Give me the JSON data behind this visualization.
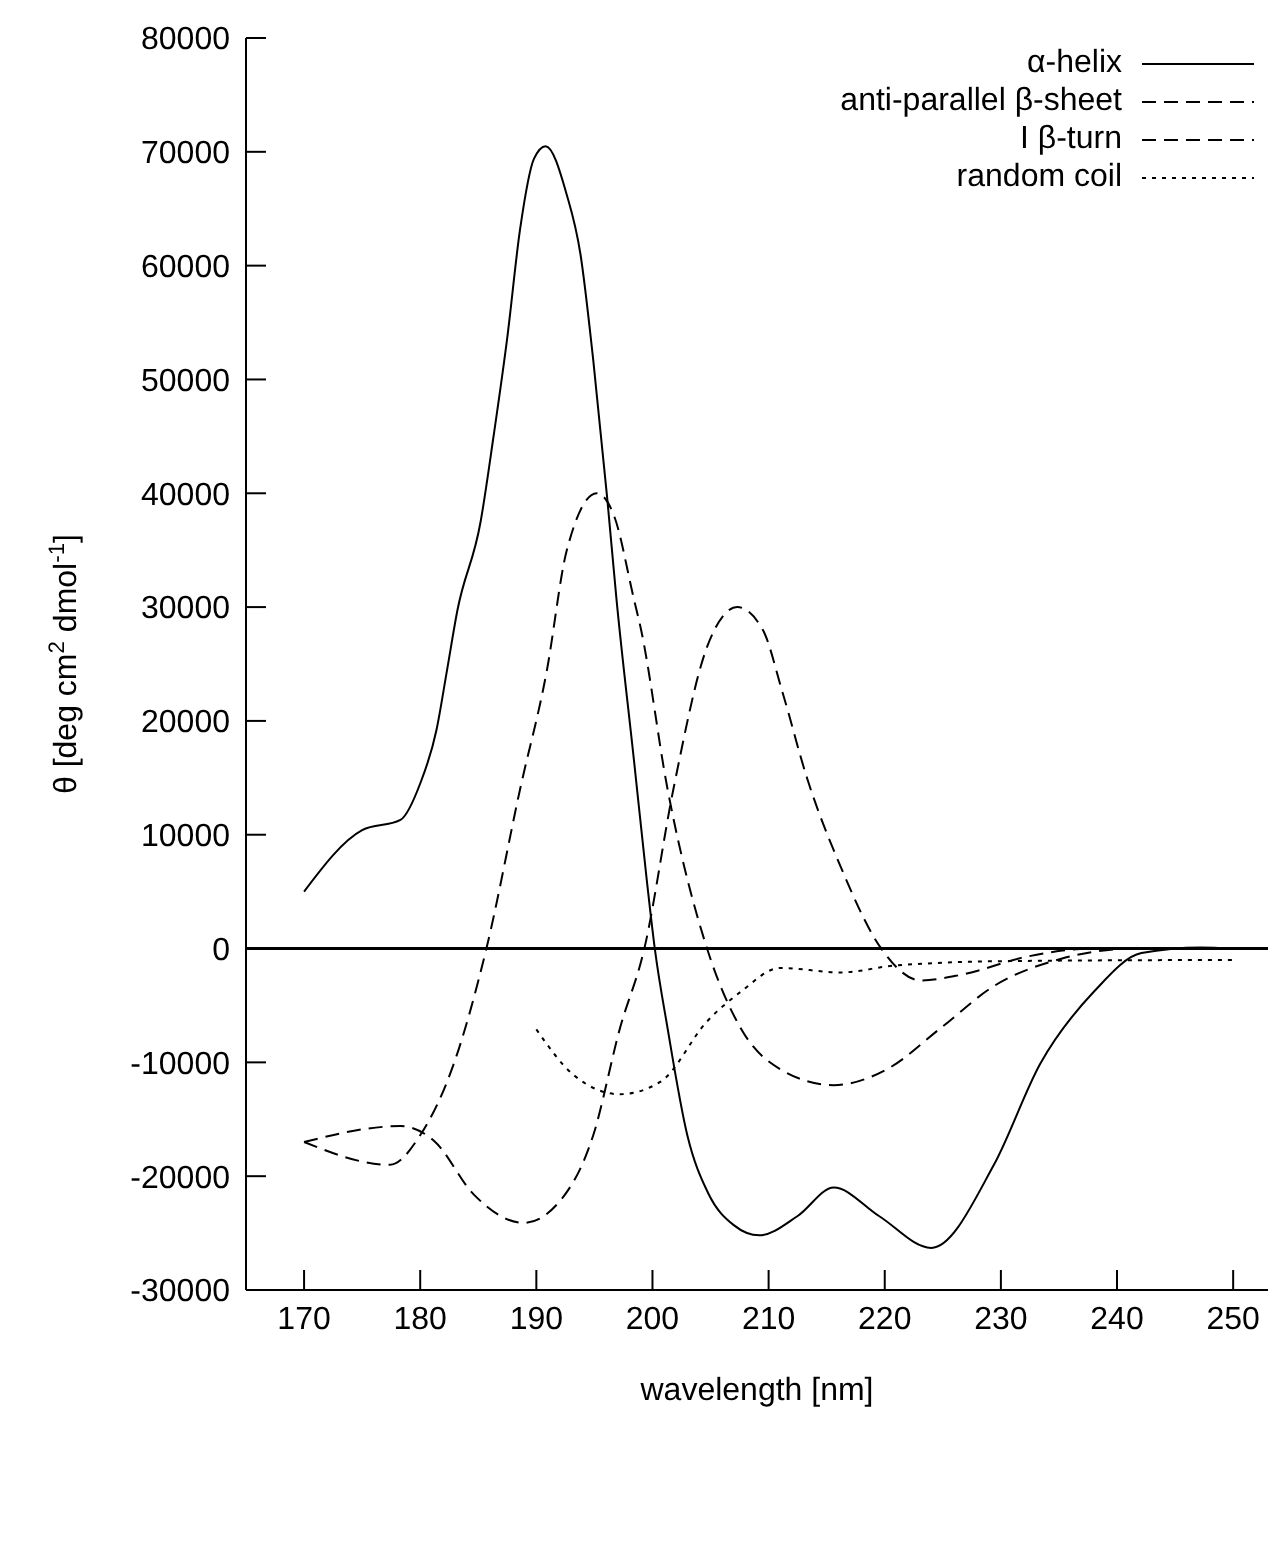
{
  "chart_data": {
    "type": "line",
    "xlabel": "wavelength [nm]",
    "ylabel": "θ [deg cm$^{2}$ dmol$^{-1}$]",
    "xlim": [
      165,
      253
    ],
    "xticks": [
      170,
      180,
      190,
      200,
      210,
      220,
      230,
      240,
      250
    ],
    "ylim": [
      -30000,
      80000
    ],
    "yticks": [
      -30000,
      -20000,
      -10000,
      0,
      10000,
      20000,
      30000,
      40000,
      50000,
      60000,
      70000,
      80000
    ],
    "legend": "top right",
    "ref_lines": [
      {
        "axis": "y",
        "value": 0,
        "color": "#000000"
      }
    ],
    "series": [
      {
        "name": "α-helix",
        "color": "#000000",
        "line_style": "solid",
        "x": [
          170,
          175,
          178.3,
          180,
          181.4,
          182.3,
          183.2,
          185.2,
          186.3,
          187.5,
          188.6,
          189.8,
          190.8,
          192.6,
          193.8,
          194.9,
          196.1,
          196.9,
          198.4,
          199.5,
          200.2,
          201.3,
          203,
          204.8,
          207,
          209.2,
          212.5,
          215.6,
          219.5,
          224,
          229.4,
          233.4,
          238,
          242.1,
          247.2,
          250
        ],
        "values": [
          5000,
          10400,
          11300,
          14500,
          19200,
          24400,
          29700,
          37500,
          44900,
          53700,
          63200,
          69400,
          70500,
          66300,
          61000,
          51700,
          39600,
          30700,
          16600,
          6100,
          0,
          -7000,
          -16400,
          -21500,
          -24300,
          -25200,
          -23500,
          -21000,
          -23500,
          -26300,
          -19000,
          -10100,
          -3800,
          -400,
          100,
          0
        ]
      },
      {
        "name": "anti-parallel β-sheet",
        "color": "#000000",
        "line_style": "dashed",
        "x": [
          170,
          177.4,
          180,
          182.9,
          185.7,
          188.6,
          190.9,
          192.6,
          195.2,
          196.7,
          198.4,
          199,
          201.3,
          204.7,
          207.6,
          211,
          215.6,
          220.2,
          224.8,
          229.4,
          235.2,
          241.5,
          250
        ],
        "values": [
          -17000,
          -19000,
          -16400,
          -10100,
          0,
          14000,
          24400,
          34900,
          40000,
          38000,
          30700,
          28100,
          14000,
          0,
          -7000,
          -10600,
          -12000,
          -10600,
          -7000,
          -3300,
          -900,
          0,
          0
        ]
      },
      {
        "name": "I β-turn",
        "color": "#000000",
        "line_style": "dashed",
        "x": [
          170,
          178.3,
          181.2,
          184.6,
          188.9,
          192.1,
          194.9,
          197.2,
          199.3,
          201.8,
          204.7,
          207.3,
          209.5,
          211.2,
          213.3,
          216.2,
          219.7,
          223.1,
          226.6,
          232.3,
          238,
          250
        ],
        "values": [
          -17000,
          -15600,
          -16900,
          -21600,
          -24100,
          -22100,
          -16400,
          -7000,
          0,
          14000,
          26500,
          30000,
          28000,
          22500,
          15000,
          7200,
          0,
          -2800,
          -2300,
          -700,
          0,
          0
        ]
      },
      {
        "name": "random coil",
        "color": "#000000",
        "line_style": "dotted",
        "x": [
          190,
          193.2,
          197.2,
          200.7,
          204.7,
          207.6,
          211,
          216.2,
          220.8,
          230.6,
          250
        ],
        "values": [
          -7100,
          -11100,
          -12800,
          -11700,
          -6400,
          -3800,
          -1700,
          -2100,
          -1500,
          -1100,
          -1000
        ]
      }
    ]
  }
}
